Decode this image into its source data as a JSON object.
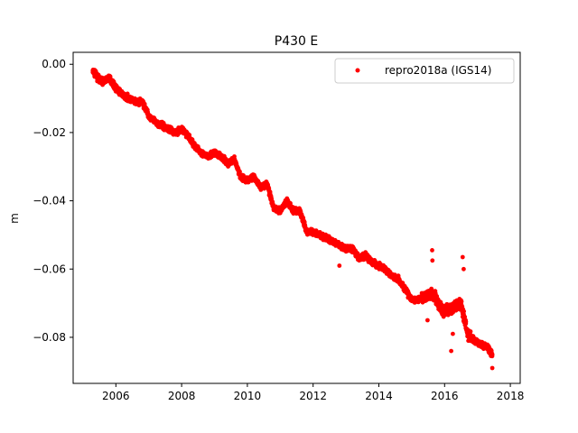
{
  "chart_data": {
    "type": "scatter",
    "title": "P430 E",
    "xlabel": "",
    "ylabel": "m",
    "xlim": [
      2004.7,
      2018.3
    ],
    "ylim": [
      -0.0935,
      0.0035
    ],
    "x_ticks": [
      2006,
      2008,
      2010,
      2012,
      2014,
      2016,
      2018
    ],
    "y_ticks": [
      0.0,
      -0.02,
      -0.04,
      -0.06,
      -0.08
    ],
    "x_tick_labels": [
      "2006",
      "2008",
      "2010",
      "2012",
      "2014",
      "2016",
      "2018"
    ],
    "y_tick_labels": [
      "0.00",
      "−0.02",
      "−0.04",
      "−0.06",
      "−0.08"
    ],
    "grid": false,
    "legend_position": "upper right",
    "series": [
      {
        "name": "repro2018a (IGS14)",
        "color": "#ff0000",
        "marker": "circle",
        "x": [
          2005.3,
          2005.45,
          2005.6,
          2005.8,
          2006.0,
          2006.2,
          2006.4,
          2006.6,
          2006.8,
          2007.0,
          2007.2,
          2007.4,
          2007.6,
          2007.8,
          2008.0,
          2008.2,
          2008.4,
          2008.6,
          2008.8,
          2009.0,
          2009.2,
          2009.4,
          2009.6,
          2009.8,
          2010.0,
          2010.2,
          2010.4,
          2010.6,
          2010.8,
          2011.0,
          2011.2,
          2011.4,
          2011.6,
          2011.8,
          2012.0,
          2012.2,
          2012.4,
          2012.6,
          2012.8,
          2013.0,
          2013.2,
          2013.4,
          2013.6,
          2013.8,
          2014.0,
          2014.2,
          2014.4,
          2014.6,
          2014.8,
          2015.0,
          2015.2,
          2015.4,
          2015.55,
          2015.7,
          2015.9,
          2016.1,
          2016.3,
          2016.5,
          2016.7,
          2016.9,
          2017.1,
          2017.3,
          2017.45
        ],
        "y": [
          -0.002,
          -0.004,
          -0.005,
          -0.004,
          -0.007,
          -0.009,
          -0.01,
          -0.011,
          -0.011,
          -0.015,
          -0.017,
          -0.018,
          -0.019,
          -0.02,
          -0.019,
          -0.021,
          -0.024,
          -0.026,
          -0.027,
          -0.026,
          -0.027,
          -0.029,
          -0.028,
          -0.033,
          -0.034,
          -0.033,
          -0.036,
          -0.035,
          -0.042,
          -0.043,
          -0.04,
          -0.043,
          -0.043,
          -0.049,
          -0.049,
          -0.05,
          -0.051,
          -0.052,
          -0.053,
          -0.054,
          -0.054,
          -0.057,
          -0.056,
          -0.058,
          -0.059,
          -0.06,
          -0.062,
          -0.063,
          -0.066,
          -0.069,
          -0.069,
          -0.068,
          -0.067,
          -0.068,
          -0.072,
          -0.072,
          -0.071,
          -0.07,
          -0.079,
          -0.081,
          -0.082,
          -0.083,
          -0.085
        ],
        "outliers_x": [
          2015.62,
          2015.63,
          2016.55,
          2016.58,
          2016.2,
          2016.25,
          2015.48,
          2012.8,
          2017.45
        ],
        "outliers_y": [
          -0.0545,
          -0.0575,
          -0.0565,
          -0.06,
          -0.084,
          -0.079,
          -0.075,
          -0.059,
          -0.089
        ]
      }
    ]
  }
}
